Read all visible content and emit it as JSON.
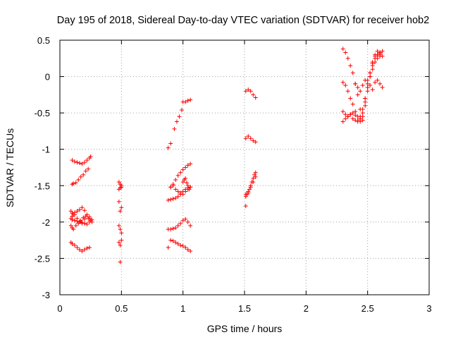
{
  "chart_data": {
    "type": "scatter",
    "title": "Day 195 of 2018, Sidereal Day-to-day VTEC variation (SDTVAR) for receiver hob2",
    "xlabel": "GPS time / hours",
    "ylabel": "SDTVAR / TECUs",
    "xlim": [
      0,
      3
    ],
    "ylim": [
      -3,
      0.5
    ],
    "x_ticks": [
      0,
      0.5,
      1,
      1.5,
      2,
      2.5,
      3
    ],
    "x_tick_labels": [
      "0",
      "0.5",
      "1",
      "1.5",
      "2",
      "2.5",
      "3"
    ],
    "y_ticks": [
      -3,
      -2.5,
      -2,
      -1.5,
      -1,
      -0.5,
      0,
      0.5
    ],
    "y_tick_labels": [
      "-3",
      "-2.5",
      "-2",
      "-1.5",
      "-1",
      "-0.5",
      "0",
      "0.5"
    ],
    "grid": true,
    "marker": "+",
    "color": "#ff0000",
    "series": [
      {
        "name": "SDTVAR",
        "x": [
          0.1,
          0.12,
          0.14,
          0.16,
          0.18,
          0.2,
          0.22,
          0.24,
          0.25,
          0.1,
          0.11,
          0.13,
          0.15,
          0.17,
          0.19,
          0.21,
          0.23,
          0.09,
          0.1,
          0.11,
          0.12,
          0.14,
          0.16,
          0.18,
          0.2,
          0.22,
          0.24,
          0.26,
          0.09,
          0.1,
          0.12,
          0.14,
          0.16,
          0.18,
          0.2,
          0.22,
          0.24,
          0.09,
          0.1,
          0.11,
          0.13,
          0.15,
          0.17,
          0.19,
          0.21,
          0.23,
          0.25,
          0.09,
          0.1,
          0.12,
          0.14,
          0.16,
          0.18,
          0.2,
          0.22,
          0.24,
          0.1,
          0.12,
          0.14,
          0.16,
          0.18,
          0.2,
          0.22,
          0.24,
          0.26,
          0.48,
          0.49,
          0.5,
          0.48,
          0.49,
          0.5,
          0.48,
          0.49,
          0.5,
          0.48,
          0.49,
          0.5,
          0.48,
          0.49,
          0.5,
          0.49,
          0.88,
          0.9,
          0.93,
          0.95,
          0.97,
          0.99,
          1.0,
          1.02,
          1.04,
          1.06,
          0.9,
          0.92,
          0.94,
          0.96,
          0.98,
          1.0,
          1.02,
          1.04,
          1.06,
          0.88,
          0.9,
          0.92,
          0.94,
          0.96,
          0.98,
          1.0,
          1.02,
          1.04,
          1.06,
          0.88,
          0.9,
          0.92,
          0.94,
          0.96,
          0.98,
          1.0,
          1.02,
          1.04,
          1.06,
          0.9,
          0.92,
          0.94,
          0.96,
          0.98,
          1.0,
          1.02,
          1.04,
          1.06,
          0.88,
          0.9,
          0.92,
          0.94,
          0.96,
          0.98,
          1.0,
          1.02,
          1.04,
          1.06,
          1.0,
          1.01,
          1.02,
          1.03,
          1.04,
          1.05,
          1.51,
          1.53,
          1.55,
          1.57,
          1.59,
          1.51,
          1.53,
          1.55,
          1.57,
          1.59,
          1.51,
          1.52,
          1.53,
          1.54,
          1.55,
          1.56,
          1.57,
          1.58,
          1.59,
          1.51,
          1.53,
          1.55,
          1.57,
          1.59,
          1.51,
          2.3,
          2.32,
          2.34,
          2.36,
          2.38,
          2.4,
          2.42,
          2.44,
          2.46,
          2.48,
          2.5,
          2.52,
          2.54,
          2.56,
          2.58,
          2.6,
          2.62,
          2.3,
          2.32,
          2.34,
          2.36,
          2.38,
          2.4,
          2.42,
          2.44,
          2.46,
          2.48,
          2.5,
          2.52,
          2.54,
          2.56,
          2.58,
          2.6,
          2.62,
          2.3,
          2.32,
          2.34,
          2.36,
          2.38,
          2.4,
          2.42,
          2.44,
          2.46,
          2.48,
          2.5,
          2.52,
          2.54,
          2.56,
          2.58,
          2.6,
          2.3,
          2.32,
          2.34,
          2.36,
          2.38,
          2.4,
          2.42,
          2.44,
          2.46,
          2.48,
          2.5,
          2.52,
          2.54,
          2.56,
          2.58,
          2.6,
          2.4,
          2.42,
          2.44,
          2.46,
          2.48,
          2.5,
          2.52,
          2.54,
          2.56,
          2.58,
          2.6,
          2.62
        ],
        "y": [
          -1.15,
          -1.17,
          -1.18,
          -1.19,
          -1.2,
          -1.18,
          -1.15,
          -1.12,
          -1.1,
          -1.48,
          -1.47,
          -1.46,
          -1.42,
          -1.38,
          -1.35,
          -1.3,
          -1.27,
          -1.85,
          -1.88,
          -1.9,
          -1.87,
          -1.85,
          -1.83,
          -1.8,
          -1.84,
          -1.9,
          -1.95,
          -2.0,
          -1.95,
          -1.97,
          -1.98,
          -1.99,
          -2.0,
          -2.01,
          -2.02,
          -2.03,
          -2.0,
          -2.05,
          -2.08,
          -2.1,
          -2.05,
          -2.02,
          -1.98,
          -1.94,
          -1.92,
          -1.95,
          -1.98,
          -2.28,
          -2.3,
          -2.32,
          -2.35,
          -2.38,
          -2.4,
          -2.38,
          -2.36,
          -2.35,
          -1.92,
          -1.9,
          -1.95,
          -1.99,
          -2.02,
          -1.96,
          -1.9,
          -1.93,
          -1.97,
          -1.45,
          -1.48,
          -1.5,
          -1.55,
          -1.53,
          -1.52,
          -1.72,
          -1.85,
          -1.8,
          -2.05,
          -2.1,
          -2.15,
          -2.28,
          -2.32,
          -2.25,
          -2.55,
          -0.98,
          -0.92,
          -0.72,
          -0.62,
          -0.55,
          -0.46,
          -0.35,
          -0.35,
          -0.33,
          -0.32,
          -1.52,
          -1.48,
          -1.42,
          -1.36,
          -1.32,
          -1.28,
          -1.25,
          -1.22,
          -1.2,
          -1.7,
          -1.69,
          -1.68,
          -1.67,
          -1.65,
          -1.62,
          -1.58,
          -1.55,
          -1.53,
          -1.52,
          -2.1,
          -2.1,
          -2.09,
          -2.08,
          -2.05,
          -2.02,
          -1.98,
          -1.96,
          -2.0,
          -2.05,
          -1.52,
          -1.5,
          -1.55,
          -1.58,
          -1.6,
          -1.62,
          -1.58,
          -1.55,
          -1.52,
          -2.35,
          -2.25,
          -2.26,
          -2.28,
          -2.3,
          -2.32,
          -2.33,
          -2.35,
          -2.38,
          -2.4,
          -1.45,
          -1.42,
          -1.4,
          -1.46,
          -1.5,
          -1.55,
          -0.2,
          -0.18,
          -0.2,
          -0.25,
          -0.29,
          -0.85,
          -0.82,
          -0.85,
          -0.88,
          -0.9,
          -1.65,
          -1.62,
          -1.6,
          -1.55,
          -1.5,
          -1.45,
          -1.4,
          -1.35,
          -1.32,
          -1.62,
          -1.58,
          -1.52,
          -1.45,
          -1.38,
          -1.78,
          0.38,
          0.33,
          0.25,
          0.15,
          0.05,
          -0.1,
          -0.25,
          -0.45,
          -0.6,
          -0.4,
          -0.2,
          0.0,
          0.15,
          0.25,
          0.3,
          0.32,
          0.35,
          -0.08,
          -0.12,
          -0.2,
          -0.3,
          -0.38,
          -0.48,
          -0.55,
          -0.58,
          -0.55,
          -0.35,
          -0.15,
          0.05,
          0.18,
          0.28,
          0.3,
          0.3,
          0.28,
          -0.48,
          -0.52,
          -0.55,
          -0.52,
          -0.58,
          -0.6,
          -0.62,
          -0.55,
          -0.45,
          -0.3,
          -0.15,
          0.0,
          0.1,
          0.2,
          0.25,
          0.28,
          -0.62,
          -0.58,
          -0.55,
          -0.52,
          -0.5,
          -0.53,
          -0.6,
          -0.62,
          -0.5,
          -0.3,
          -0.1,
          0.05,
          0.2,
          0.3,
          0.35,
          0.33,
          -0.1,
          -0.15,
          -0.2,
          -0.12,
          -0.05,
          -0.05,
          -0.12,
          -0.18,
          -0.08,
          -0.05,
          -0.1,
          -0.15
        ]
      }
    ]
  }
}
